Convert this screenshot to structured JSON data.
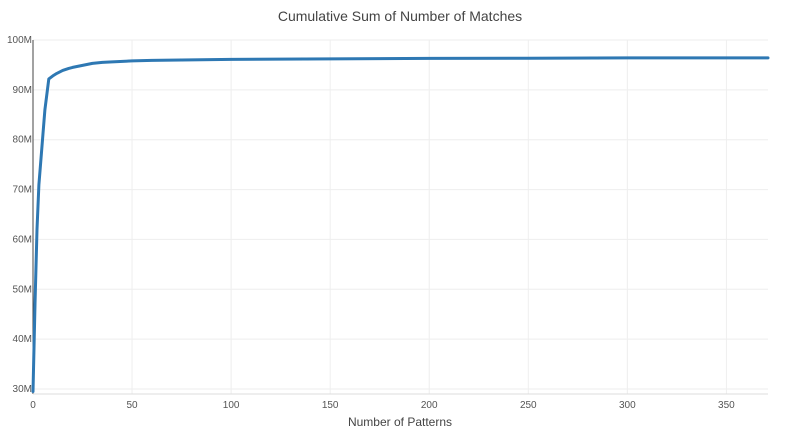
{
  "chart_data": {
    "type": "line",
    "title": "Cumulative Sum of Number of Matches",
    "xlabel": "Number of Patterns",
    "ylabel": "",
    "xlim": [
      0,
      371
    ],
    "ylim": [
      29,
      100
    ],
    "x_ticks": [
      0,
      50,
      100,
      150,
      200,
      250,
      300,
      350
    ],
    "y_ticks": [
      30,
      40,
      50,
      60,
      70,
      80,
      90,
      100
    ],
    "y_tick_labels": [
      "30M",
      "40M",
      "50M",
      "60M",
      "70M",
      "80M",
      "90M",
      "100M"
    ],
    "y_unit": "millions",
    "grid": true,
    "legend": "none",
    "series": [
      {
        "color": "#2e78b3",
        "x": [
          0,
          1,
          2,
          3,
          4,
          5,
          6,
          8,
          10,
          12,
          15,
          18,
          20,
          25,
          30,
          35,
          40,
          50,
          60,
          80,
          100,
          150,
          200,
          250,
          300,
          371
        ],
        "values": [
          29.5,
          47,
          62,
          71,
          76,
          81,
          86,
          92.2,
          92.8,
          93.3,
          93.9,
          94.3,
          94.5,
          94.9,
          95.3,
          95.5,
          95.6,
          95.8,
          95.9,
          96.0,
          96.1,
          96.2,
          96.3,
          96.35,
          96.4,
          96.4
        ]
      }
    ]
  }
}
